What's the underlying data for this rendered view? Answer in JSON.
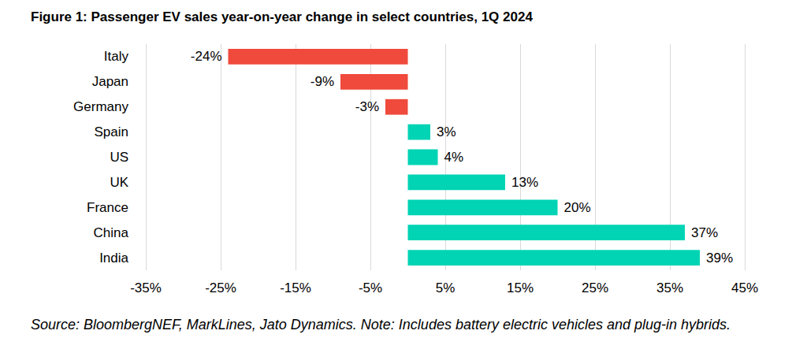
{
  "chart_data": {
    "type": "bar",
    "orientation": "horizontal",
    "title": "Figure 1: Passenger EV sales year-on-year change in select countries, 1Q 2024",
    "note": "Source: BloombergNEF, MarkLines, Jato Dynamics. Note: Includes battery electric vehicles and plug-in hybrids.",
    "categories": [
      "Italy",
      "Japan",
      "Germany",
      "Spain",
      "US",
      "UK",
      "France",
      "China",
      "India"
    ],
    "values": [
      -24,
      -9,
      -3,
      3,
      4,
      13,
      20,
      37,
      39
    ],
    "value_labels": [
      "-24%",
      "-9%",
      "-3%",
      "3%",
      "4%",
      "13%",
      "20%",
      "37%",
      "39%"
    ],
    "colors": [
      "#ef4a3c",
      "#ef4a3c",
      "#ef4a3c",
      "#00d4b4",
      "#00d4b4",
      "#00d4b4",
      "#00d4b4",
      "#00d4b4",
      "#00d4b4"
    ],
    "xlim": [
      -35,
      45
    ],
    "xticks": [
      {
        "value": -35,
        "label": "-35%"
      },
      {
        "value": -25,
        "label": "-25%"
      },
      {
        "value": -15,
        "label": "-15%"
      },
      {
        "value": -5,
        "label": "-5%"
      },
      {
        "value": 5,
        "label": "5%"
      },
      {
        "value": 15,
        "label": "15%"
      },
      {
        "value": 25,
        "label": "25%"
      },
      {
        "value": 35,
        "label": "35%"
      },
      {
        "value": 45,
        "label": "45%"
      }
    ],
    "grid": true,
    "data_labels": true
  }
}
